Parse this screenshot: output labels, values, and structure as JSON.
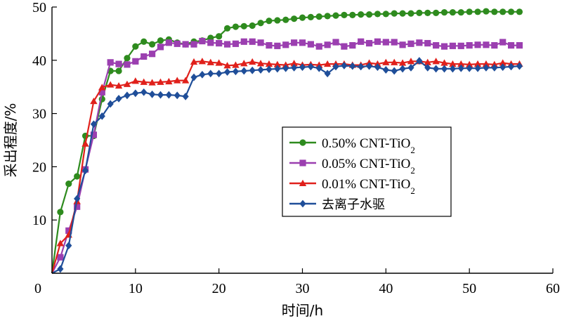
{
  "chart_data": {
    "type": "line",
    "title": "",
    "xlabel": "时间/h",
    "ylabel": "采出程度/%",
    "xlim": [
      0,
      60
    ],
    "ylim": [
      0,
      50
    ],
    "xticks": [
      0,
      10,
      20,
      30,
      40,
      50,
      60
    ],
    "yticks": [
      10,
      20,
      30,
      40,
      50
    ],
    "x_tick_labels": [
      "0",
      "10",
      "20",
      "30",
      "40",
      "50",
      "60"
    ],
    "y_tick_labels": [
      "10",
      "20",
      "30",
      "40",
      "50"
    ],
    "grid": false,
    "legend_position": "center-right",
    "series": [
      {
        "name": "0.50% CNT-TiO",
        "name_subscript": "2",
        "color": "#2e8b1e",
        "marker": "circle",
        "x": [
          0,
          1,
          2,
          3,
          4,
          5,
          6,
          7,
          8,
          9,
          10,
          11,
          12,
          13,
          14,
          15,
          16,
          17,
          18,
          19,
          20,
          21,
          22,
          23,
          24,
          25,
          26,
          27,
          28,
          29,
          30,
          31,
          32,
          33,
          34,
          35,
          36,
          37,
          38,
          39,
          40,
          41,
          42,
          43,
          44,
          45,
          46,
          47,
          48,
          49,
          50,
          51,
          52,
          53,
          54,
          55,
          56
        ],
        "y": [
          0,
          11.5,
          16.8,
          18.2,
          25.8,
          25.8,
          32.7,
          38,
          38,
          40.4,
          42.6,
          43.5,
          43,
          43.7,
          43.9,
          43.3,
          43,
          43.5,
          43.7,
          44.2,
          44.5,
          46,
          46.3,
          46.4,
          46.5,
          47,
          47.4,
          47.5,
          47.6,
          47.8,
          48,
          48.1,
          48.2,
          48.3,
          48.4,
          48.5,
          48.5,
          48.6,
          48.6,
          48.7,
          48.7,
          48.8,
          48.8,
          48.8,
          48.9,
          48.9,
          48.9,
          49,
          49,
          49,
          49.1,
          49.1,
          49.2,
          49.1,
          49.1,
          49.1,
          49.1
        ]
      },
      {
        "name": "0.05% CNT-TiO",
        "name_subscript": "2",
        "color": "#9b3fb0",
        "marker": "square",
        "x": [
          0,
          1,
          2,
          3,
          4,
          5,
          6,
          7,
          8,
          9,
          10,
          11,
          12,
          13,
          14,
          15,
          16,
          17,
          18,
          19,
          20,
          21,
          22,
          23,
          24,
          25,
          26,
          27,
          28,
          29,
          30,
          31,
          32,
          33,
          34,
          35,
          36,
          37,
          38,
          39,
          40,
          41,
          42,
          43,
          44,
          45,
          46,
          47,
          48,
          49,
          50,
          51,
          52,
          53,
          54,
          55,
          56
        ],
        "y": [
          0,
          3,
          8,
          12.5,
          19.5,
          26,
          34,
          39.6,
          39.3,
          39.2,
          39.8,
          40.7,
          41.2,
          42.5,
          43.3,
          43.1,
          43,
          43,
          43.6,
          43.3,
          43.2,
          43,
          43.1,
          43.5,
          43.5,
          43.3,
          42.8,
          42.7,
          42.9,
          43.3,
          43.3,
          43,
          42.6,
          42.9,
          43.4,
          42.6,
          42.8,
          43.5,
          43.2,
          43.5,
          43.4,
          43.4,
          42.9,
          43.1,
          43.3,
          43.2,
          42.8,
          42.6,
          42.7,
          42.7,
          42.8,
          42.9,
          42.9,
          42.8,
          43.4,
          42.8,
          42.8
        ]
      },
      {
        "name": "0.01% CNT-TiO",
        "name_subscript": "2",
        "color": "#e0201b",
        "marker": "triangle",
        "x": [
          0,
          1,
          2,
          3,
          4,
          5,
          6,
          7,
          8,
          9,
          10,
          11,
          12,
          13,
          14,
          15,
          16,
          17,
          18,
          19,
          20,
          21,
          22,
          23,
          24,
          25,
          26,
          27,
          28,
          29,
          30,
          31,
          32,
          33,
          34,
          35,
          36,
          37,
          38,
          39,
          40,
          41,
          42,
          43,
          44,
          45,
          46,
          47,
          48,
          49,
          50,
          51,
          52,
          53,
          54,
          55,
          56
        ],
        "y": [
          0,
          5.6,
          7.2,
          13.5,
          24.3,
          32.3,
          34.9,
          35.4,
          35.2,
          35.5,
          36.1,
          35.9,
          35.8,
          35.9,
          36,
          36.2,
          36.2,
          39.7,
          39.8,
          39.6,
          39.5,
          39,
          39.1,
          39.4,
          39.7,
          39.4,
          39.3,
          39.2,
          39.1,
          39.4,
          39.1,
          39.2,
          39.1,
          39.3,
          39.3,
          39.3,
          39.1,
          39.1,
          39.5,
          39.3,
          39.6,
          39.6,
          39.5,
          39.8,
          39.8,
          39.6,
          39.8,
          39.5,
          39.3,
          39.3,
          39.2,
          39.3,
          39.3,
          39.2,
          39.5,
          39.3,
          39.3
        ]
      },
      {
        "name": "去离子水驱",
        "name_subscript": "",
        "color": "#1f4e99",
        "marker": "diamond",
        "x": [
          0,
          1,
          2,
          3,
          4,
          5,
          6,
          7,
          8,
          9,
          10,
          11,
          12,
          13,
          14,
          15,
          16,
          17,
          18,
          19,
          20,
          21,
          22,
          23,
          24,
          25,
          26,
          27,
          28,
          29,
          30,
          31,
          32,
          33,
          34,
          35,
          36,
          37,
          38,
          39,
          40,
          41,
          42,
          43,
          44,
          45,
          46,
          47,
          48,
          49,
          50,
          51,
          52,
          53,
          54,
          55,
          56
        ],
        "y": [
          0,
          0.8,
          5.2,
          14,
          19.3,
          28,
          29.5,
          31.8,
          32.8,
          33.4,
          33.8,
          34,
          33.6,
          33.5,
          33.5,
          33.4,
          33.2,
          36.8,
          37.3,
          37.5,
          37.5,
          37.8,
          37.9,
          38,
          38.1,
          38.2,
          38.3,
          38.4,
          38.5,
          38.6,
          38.7,
          38.8,
          38.5,
          37.5,
          38.8,
          39,
          38.9,
          38.8,
          38.9,
          38.7,
          38.2,
          38,
          38.4,
          38.6,
          39.9,
          38.6,
          38.4,
          38.4,
          38.4,
          38.5,
          38.5,
          38.5,
          38.6,
          38.6,
          38.7,
          38.8,
          38.9
        ]
      }
    ]
  }
}
